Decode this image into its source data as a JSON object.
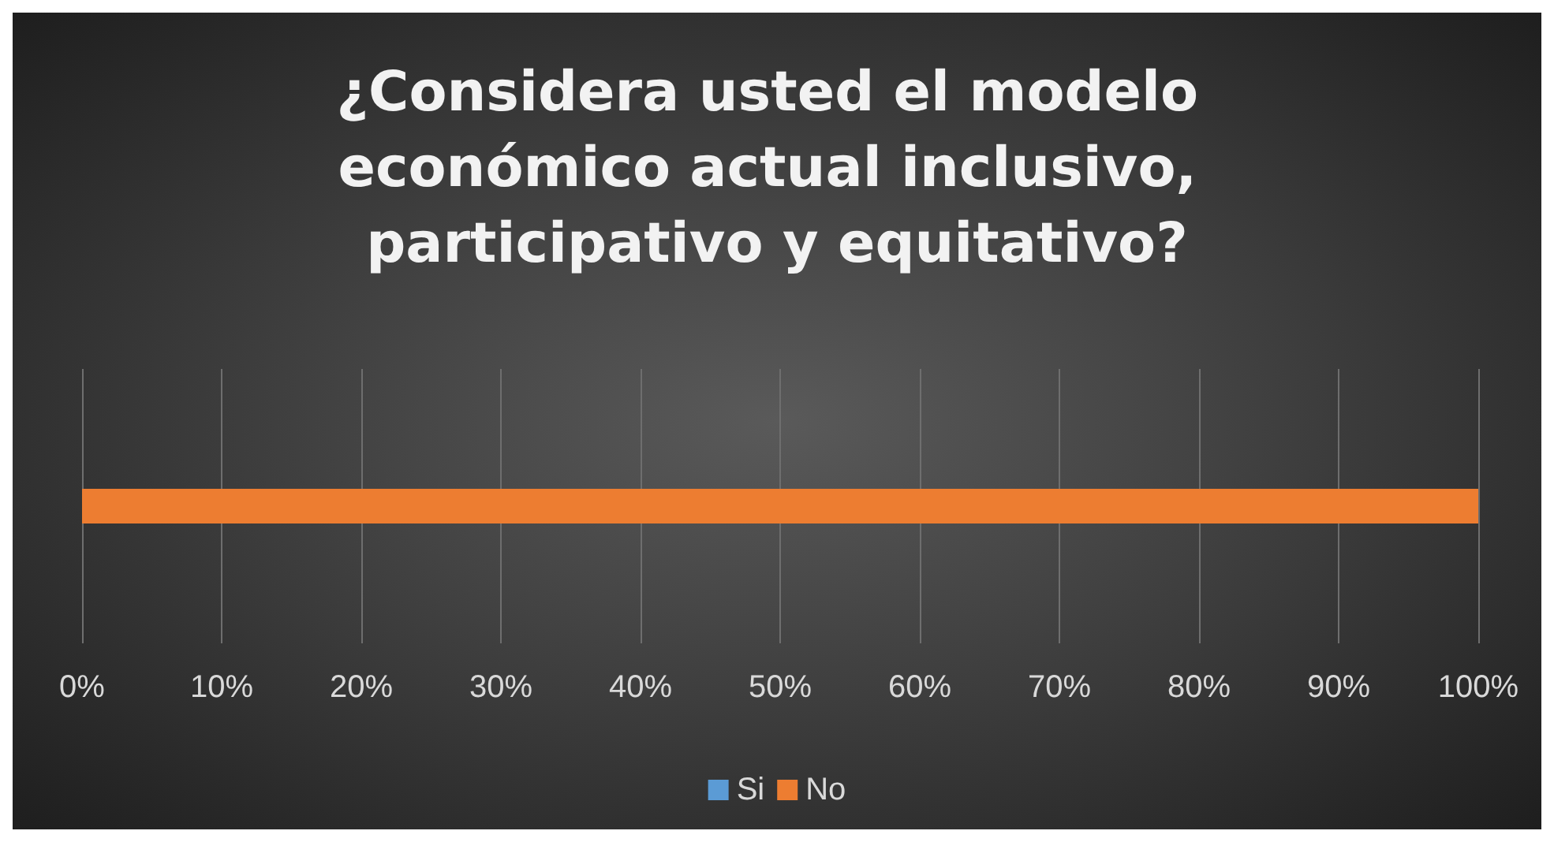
{
  "chart_data": {
    "type": "bar",
    "title": "¿Considera usted el modelo económico actual inclusivo, participativo y equitativo?",
    "orientation": "horizontal",
    "stacked": true,
    "categories": [
      null
    ],
    "series": [
      {
        "name": "Si",
        "color": "#5b9bd5",
        "values": [
          0
        ]
      },
      {
        "name": "No",
        "color": "#ed7d31",
        "values": [
          100
        ]
      }
    ],
    "xlim": [
      0,
      100
    ],
    "xticks": [
      {
        "value": 0,
        "label": "0%"
      },
      {
        "value": 10,
        "label": "10%"
      },
      {
        "value": 20,
        "label": "20%"
      },
      {
        "value": 30,
        "label": "30%"
      },
      {
        "value": 40,
        "label": "40%"
      },
      {
        "value": 50,
        "label": "50%"
      },
      {
        "value": 60,
        "label": "60%"
      },
      {
        "value": 70,
        "label": "70%"
      },
      {
        "value": 80,
        "label": "80%"
      },
      {
        "value": 90,
        "label": "90%"
      },
      {
        "value": 100,
        "label": "100%"
      }
    ],
    "grid": "x",
    "legend": "bottom"
  }
}
